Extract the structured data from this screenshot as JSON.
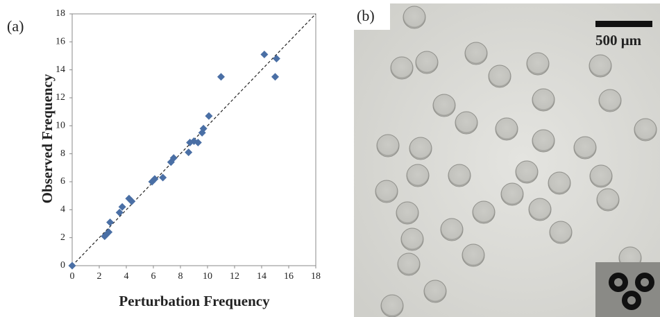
{
  "chart_data": {
    "type": "scatter",
    "panel_label": "(a)",
    "x_label": "Perturbation Frequency",
    "y_label": "Observed Frequency",
    "x": [
      0,
      2.4,
      2.5,
      2.7,
      2.8,
      3.5,
      3.7,
      4.2,
      4.4,
      5.9,
      6.1,
      6.7,
      7.3,
      7.5,
      8.6,
      8.7,
      9.0,
      9.3,
      9.6,
      9.7,
      10.1,
      11.0,
      14.2,
      15.1,
      15.0
    ],
    "values": [
      0,
      2.1,
      2.2,
      2.4,
      3.1,
      3.8,
      4.2,
      4.8,
      4.6,
      6.0,
      6.2,
      6.3,
      7.4,
      7.7,
      8.1,
      8.8,
      8.9,
      8.8,
      9.5,
      9.8,
      10.7,
      13.5,
      15.1,
      14.8,
      13.5
    ],
    "color": "#4a6fa5",
    "xlim": [
      0,
      18
    ],
    "ylim": [
      0,
      18
    ],
    "xticks": [
      0,
      2,
      4,
      6,
      8,
      10,
      12,
      14,
      16,
      18
    ],
    "yticks": [
      0,
      2,
      4,
      6,
      8,
      10,
      12,
      14,
      16,
      18
    ]
  },
  "photo": {
    "panel_label": "(b)",
    "scale_bar_label": "500 μm"
  }
}
